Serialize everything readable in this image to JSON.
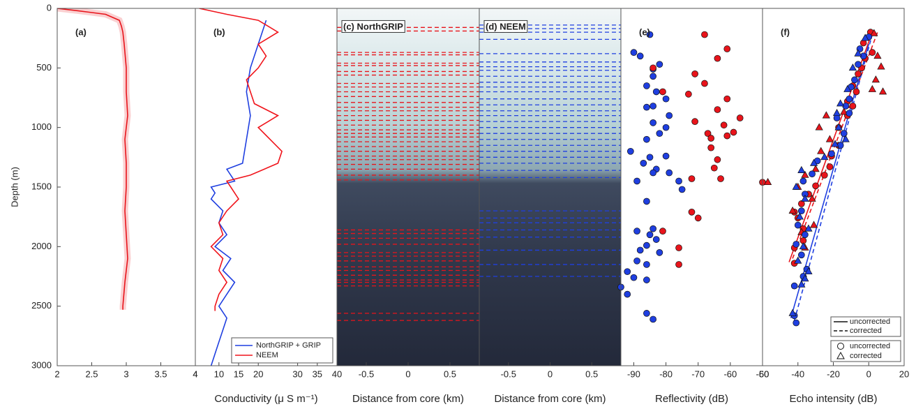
{
  "chart_data": [
    {
      "type": "line",
      "label": "(a)",
      "ylabel": "Depth (m)",
      "ylim": [
        0,
        3000
      ],
      "yticks": [
        0,
        500,
        1000,
        1500,
        2000,
        2500,
        3000
      ],
      "xlim": [
        2,
        4
      ],
      "xticks": [
        2,
        2.5,
        3,
        3.5,
        4
      ],
      "series": [
        {
          "color": "#e8141b",
          "values": [
            2,
            2.3,
            2.7,
            2.9,
            2.93,
            2.95,
            2.97,
            3.0,
            3.0,
            3.02,
            2.98,
            3.0,
            3.0,
            2.98,
            3.0,
            3.02,
            2.98,
            2.95,
            2.95
          ],
          "depths": [
            0,
            20,
            50,
            100,
            150,
            200,
            300,
            500,
            700,
            900,
            1100,
            1300,
            1500,
            1700,
            1900,
            2100,
            2300,
            2500,
            2530
          ]
        }
      ]
    },
    {
      "type": "line",
      "label": "(b)",
      "ylim": [
        0,
        3000
      ],
      "xlim": [
        4,
        40
      ],
      "xticks": [
        4,
        10,
        15,
        20,
        30,
        35,
        40
      ],
      "xlabel": "Conductivity (μ S m⁻¹)",
      "series": [
        {
          "name": "NorthGRIP + GRIP",
          "color": "#1f3fe0",
          "values": [
            22,
            20,
            18,
            17,
            18,
            17,
            16,
            12,
            14,
            8,
            9,
            8,
            11,
            10,
            12,
            9,
            13,
            11,
            14,
            12,
            10,
            12,
            11,
            10,
            9,
            8
          ],
          "depths": [
            100,
            300,
            500,
            700,
            900,
            1100,
            1300,
            1350,
            1450,
            1500,
            1550,
            1600,
            1700,
            1800,
            1900,
            2000,
            2100,
            2200,
            2300,
            2400,
            2500,
            2600,
            2700,
            2800,
            2900,
            3000
          ]
        },
        {
          "name": "NEEM",
          "color": "#f0141b",
          "values": [
            5,
            12,
            20,
            25,
            20,
            22,
            20,
            17,
            18,
            19,
            25,
            20,
            23,
            26,
            25,
            18,
            12,
            13,
            15,
            12,
            10,
            11,
            8,
            11,
            10,
            12,
            10,
            9,
            9
          ],
          "depths": [
            0,
            50,
            100,
            200,
            300,
            400,
            500,
            600,
            700,
            800,
            900,
            1000,
            1100,
            1200,
            1300,
            1400,
            1450,
            1500,
            1600,
            1700,
            1800,
            1900,
            2000,
            2100,
            2200,
            2300,
            2400,
            2500,
            2540
          ]
        }
      ]
    },
    {
      "type": "radargram",
      "label": "(c) NorthGRIP",
      "ylim": [
        0,
        3000
      ],
      "xlim": [
        -0.85,
        0.85
      ],
      "xticks": [
        -0.5,
        0,
        0.5
      ],
      "xlabel": "Distance from core (km)",
      "color": "#e8141b",
      "horizons": [
        160,
        190,
        370,
        390,
        460,
        480,
        530,
        560,
        630,
        660,
        700,
        740,
        790,
        830,
        860,
        900,
        940,
        980,
        1020,
        1050,
        1080,
        1120,
        1160,
        1200,
        1240,
        1270,
        1310,
        1350,
        1400,
        1440,
        1860,
        1890,
        1930,
        1980,
        2050,
        2080,
        2120,
        2170,
        2200,
        2240,
        2280,
        2300,
        2330,
        2560,
        2620
      ]
    },
    {
      "type": "radargram",
      "label": "(d) NEEM",
      "ylim": [
        0,
        3000
      ],
      "xlim": [
        -0.85,
        0.85
      ],
      "xticks": [
        -0.5,
        0,
        0.5
      ],
      "xlabel": "Distance from core (km)",
      "color": "#1f3fe0",
      "horizons": [
        140,
        170,
        200,
        260,
        380,
        450,
        490,
        520,
        570,
        620,
        660,
        700,
        760,
        810,
        860,
        900,
        950,
        1000,
        1050,
        1100,
        1150,
        1200,
        1250,
        1300,
        1360,
        1420,
        1700,
        1760,
        1800,
        1860,
        1920,
        2030,
        2150,
        2250
      ]
    },
    {
      "type": "scatter",
      "label": "(e)",
      "ylim": [
        0,
        3000
      ],
      "xlim": [
        -94,
        -50
      ],
      "xticks": [
        -90,
        -80,
        -70,
        -60,
        -50
      ],
      "xlabel": "Reflectivity (dB)",
      "series": [
        {
          "color": "#1f3fe0",
          "marker": "circle",
          "values": [
            -85,
            -90,
            -88,
            -82,
            -84,
            -84,
            -86,
            -83,
            -80,
            -84,
            -86,
            -79,
            -84,
            -80,
            -82,
            -86,
            -91,
            -85,
            -80,
            -87,
            -83,
            -79,
            -76,
            -75,
            -84,
            -89,
            -86,
            -89,
            -84,
            -85,
            -83,
            -86,
            -88,
            -82,
            -89,
            -86,
            -92,
            -90,
            -86,
            -94,
            -92,
            -86,
            -84
          ],
          "depths": [
            220,
            370,
            400,
            470,
            510,
            570,
            650,
            700,
            760,
            820,
            830,
            900,
            960,
            1000,
            1050,
            1100,
            1200,
            1250,
            1240,
            1300,
            1350,
            1380,
            1450,
            1520,
            1380,
            1450,
            1620,
            1870,
            1850,
            1900,
            1940,
            1990,
            2030,
            2050,
            2120,
            2150,
            2210,
            2260,
            2280,
            2340,
            2400,
            2560,
            2610
          ]
        },
        {
          "color": "#e8141b",
          "marker": "circle",
          "values": [
            -68,
            -61,
            -64,
            -84,
            -71,
            -81,
            -73,
            -68,
            -61,
            -64,
            -57,
            -71,
            -62,
            -59,
            -67,
            -61,
            -66,
            -66,
            -64,
            -65,
            -72,
            -63,
            -50,
            -72,
            -70,
            -81,
            -76,
            -76
          ],
          "depths": [
            220,
            340,
            420,
            500,
            550,
            700,
            720,
            630,
            760,
            850,
            920,
            950,
            980,
            1040,
            1050,
            1070,
            1090,
            1170,
            1270,
            1340,
            1430,
            1430,
            1460,
            1710,
            1760,
            1870,
            2010,
            2150
          ]
        }
      ]
    },
    {
      "type": "scatter",
      "label": "(f)",
      "ylim": [
        0,
        3000
      ],
      "xlim": [
        -60,
        20
      ],
      "xticks": [
        -60,
        -40,
        -20,
        0,
        20
      ],
      "xlabel": "Echo intensity (dB)",
      "line_legend": [
        "uncorrected",
        "corrected"
      ],
      "marker_legend": [
        "uncorrected",
        "corrected"
      ],
      "series": [
        {
          "color": "#e8141b",
          "marker": "circle",
          "values": [
            1,
            -3,
            2,
            -2,
            -4,
            -6,
            -9,
            -7,
            -12,
            -9,
            -12,
            -17,
            -14,
            -17,
            -21,
            -22,
            -25,
            -30,
            -34,
            -38,
            -42,
            -40,
            -37,
            -37,
            -42,
            -42
          ],
          "depths": [
            200,
            290,
            370,
            420,
            500,
            550,
            650,
            700,
            780,
            820,
            900,
            1000,
            1050,
            1150,
            1240,
            1330,
            1400,
            1490,
            1560,
            1640,
            1710,
            1760,
            1850,
            1950,
            2010,
            2140
          ]
        },
        {
          "color": "#e8141b",
          "marker": "triangle",
          "values": [
            3,
            5,
            7,
            4,
            2,
            8,
            -14,
            -24,
            -28,
            -22,
            -27,
            -30,
            -36,
            -57,
            -40,
            -32,
            -43,
            -31,
            -38,
            -36
          ],
          "depths": [
            210,
            400,
            490,
            600,
            680,
            700,
            870,
            900,
            1000,
            1100,
            1200,
            1350,
            1400,
            1460,
            1500,
            1600,
            1700,
            1820,
            1880,
            2010
          ]
        },
        {
          "color": "#1f3fe0",
          "marker": "circle",
          "values": [
            0,
            -5,
            -3,
            -6,
            -8,
            -10,
            -11,
            -13,
            -11,
            -18,
            -14,
            -16,
            -21,
            -29,
            -32,
            -37,
            -36,
            -38,
            -40,
            -36,
            -41,
            -38,
            -35,
            -37,
            -42,
            -42,
            -41
          ],
          "depths": [
            240,
            340,
            400,
            470,
            600,
            660,
            760,
            820,
            880,
            920,
            1050,
            1150,
            1220,
            1280,
            1390,
            1450,
            1560,
            1700,
            1820,
            1900,
            1980,
            2070,
            2190,
            2250,
            2330,
            2580,
            2640
          ]
        },
        {
          "color": "#1f3fe0",
          "marker": "triangle",
          "values": [
            -2,
            -6,
            -9,
            -12,
            -16,
            -18,
            -17,
            -13,
            -19,
            -25,
            -31,
            -38,
            -41,
            -36,
            -39,
            -34,
            -37,
            -40,
            -34,
            -36,
            -38,
            -43
          ],
          "depths": [
            250,
            380,
            500,
            680,
            800,
            880,
            1000,
            1100,
            1140,
            1250,
            1300,
            1360,
            1500,
            1600,
            1750,
            1850,
            2000,
            2120,
            2210,
            2270,
            2320,
            2560
          ]
        }
      ],
      "fits": [
        {
          "color": "#e8141b",
          "dashed": false,
          "values": [
            -45,
            2
          ],
          "depths": [
            2130,
            200
          ]
        },
        {
          "color": "#e8141b",
          "dashed": true,
          "values": [
            -43,
            5
          ],
          "depths": [
            2100,
            200
          ]
        },
        {
          "color": "#1f3fe0",
          "dashed": false,
          "values": [
            -44,
            0
          ],
          "depths": [
            2600,
            300
          ]
        },
        {
          "color": "#1f3fe0",
          "dashed": true,
          "values": [
            -42,
            2
          ],
          "depths": [
            2620,
            220
          ]
        }
      ]
    }
  ]
}
